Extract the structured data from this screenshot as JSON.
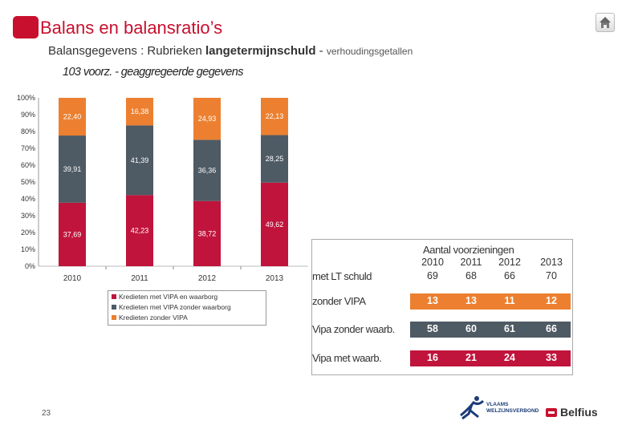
{
  "header": {
    "title": "Balans en balansratio’s",
    "subtitle_prefix": "Balansgegevens : Rubrieken",
    "subtitle_bold": "langetermijnschuld",
    "subtitle_dash": " - ",
    "subtitle_suffix": "verhoudingsgetallen"
  },
  "chart_heading": "103 voorz. - geaggregeerde gegevens",
  "chart_data": {
    "type": "bar",
    "stacked": true,
    "categories": [
      "2010",
      "2011",
      "2012",
      "2013"
    ],
    "series": [
      {
        "name": "Kredieten met VIPA en waarborg",
        "color": "#c0143c",
        "values": [
          37.69,
          42.23,
          38.72,
          49.62
        ],
        "labels": [
          "37,69",
          "42,23",
          "38,72",
          "49,62"
        ]
      },
      {
        "name": "Kredieten met VIPA zonder waarborg",
        "color": "#4e5a64",
        "values": [
          39.91,
          41.39,
          36.36,
          28.25
        ],
        "labels": [
          "39,91",
          "41,39",
          "36,36",
          "28,25"
        ]
      },
      {
        "name": "Kredieten zonder VIPA",
        "color": "#ec8030",
        "values": [
          22.4,
          16.38,
          24.93,
          22.13
        ],
        "labels": [
          "22,40",
          "16,38",
          "24,93",
          "22,13"
        ]
      }
    ],
    "y_ticks": [
      "0%",
      "10%",
      "20%",
      "30%",
      "40%",
      "50%",
      "60%",
      "70%",
      "80%",
      "90%",
      "100%"
    ],
    "ylim": [
      0,
      100
    ],
    "grid": false,
    "legend_position": "bottom"
  },
  "table": {
    "title": "Aantal voorzieningen",
    "years": [
      "2010",
      "2011",
      "2012",
      "2013"
    ],
    "total_row": {
      "label": "met LT schuld",
      "values": [
        "69",
        "68",
        "66",
        "70"
      ]
    },
    "rows": [
      {
        "label": "zonder VIPA",
        "color": "#ec8030",
        "values": [
          "13",
          "13",
          "11",
          "12"
        ]
      },
      {
        "label": "Vipa zonder waarb.",
        "color": "#4e5a64",
        "values": [
          "58",
          "60",
          "61",
          "66"
        ]
      },
      {
        "label": "Vipa met waarb.",
        "color": "#c0143c",
        "values": [
          "16",
          "21",
          "24",
          "33"
        ]
      }
    ]
  },
  "footer": {
    "page_number": "23",
    "vvsg_line1": "VLAAMS",
    "vvsg_line2": "WELZIJNSVERBOND",
    "belfius": "Belfius"
  }
}
